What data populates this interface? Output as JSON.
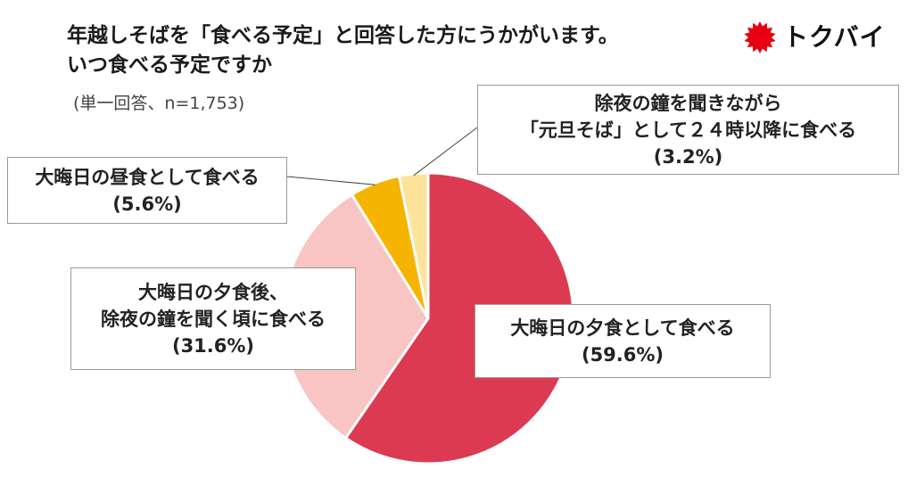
{
  "header": {
    "title_line1": "年越しそばを「食べる予定」と回答した方にうかがいます。",
    "title_line2": "いつ食べる予定ですか",
    "subtitle": "(単一回答、n=1,753)"
  },
  "brand": {
    "name": "トクバイ",
    "color": "#e60012"
  },
  "chart_data": {
    "type": "pie",
    "slices": [
      {
        "label_lines": [
          "大晦日の夕食として食べる"
        ],
        "value": 59.6,
        "value_label": "(59.6%)",
        "color": "#dc3a52"
      },
      {
        "label_lines": [
          "大晦日の夕食後、",
          "除夜の鐘を聞く頃に食べる"
        ],
        "value": 31.6,
        "value_label": "(31.6%)",
        "color": "#f8c4c4"
      },
      {
        "label_lines": [
          "大晦日の昼食として食べる"
        ],
        "value": 5.6,
        "value_label": "(5.6%)",
        "color": "#f6b400"
      },
      {
        "label_lines": [
          "除夜の鐘を聞きながら",
          "「元旦そば」として２４時以降に食べる"
        ],
        "value": 3.2,
        "value_label": "(3.2%)",
        "color": "#fde39a"
      }
    ],
    "start_angle_deg": 0,
    "direction": "clockwise",
    "legend": "callouts"
  }
}
